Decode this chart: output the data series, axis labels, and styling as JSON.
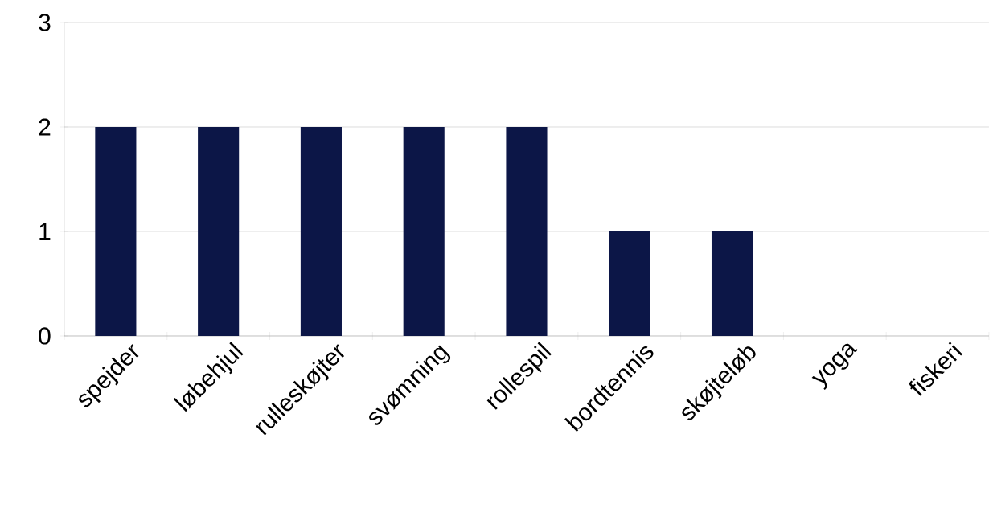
{
  "chart_data": {
    "type": "bar",
    "categories": [
      "spejder",
      "løbehjul",
      "rulleskøjter",
      "svømning",
      "rollespil",
      "bordtennis",
      "skøjteløb",
      "yoga",
      "fiskeri"
    ],
    "values": [
      2,
      2,
      2,
      2,
      2,
      1,
      1,
      0,
      0
    ],
    "color": "#0c1647",
    "ylim": [
      0,
      3
    ],
    "yticks": [
      0,
      1,
      2,
      3
    ],
    "grid": "y"
  }
}
